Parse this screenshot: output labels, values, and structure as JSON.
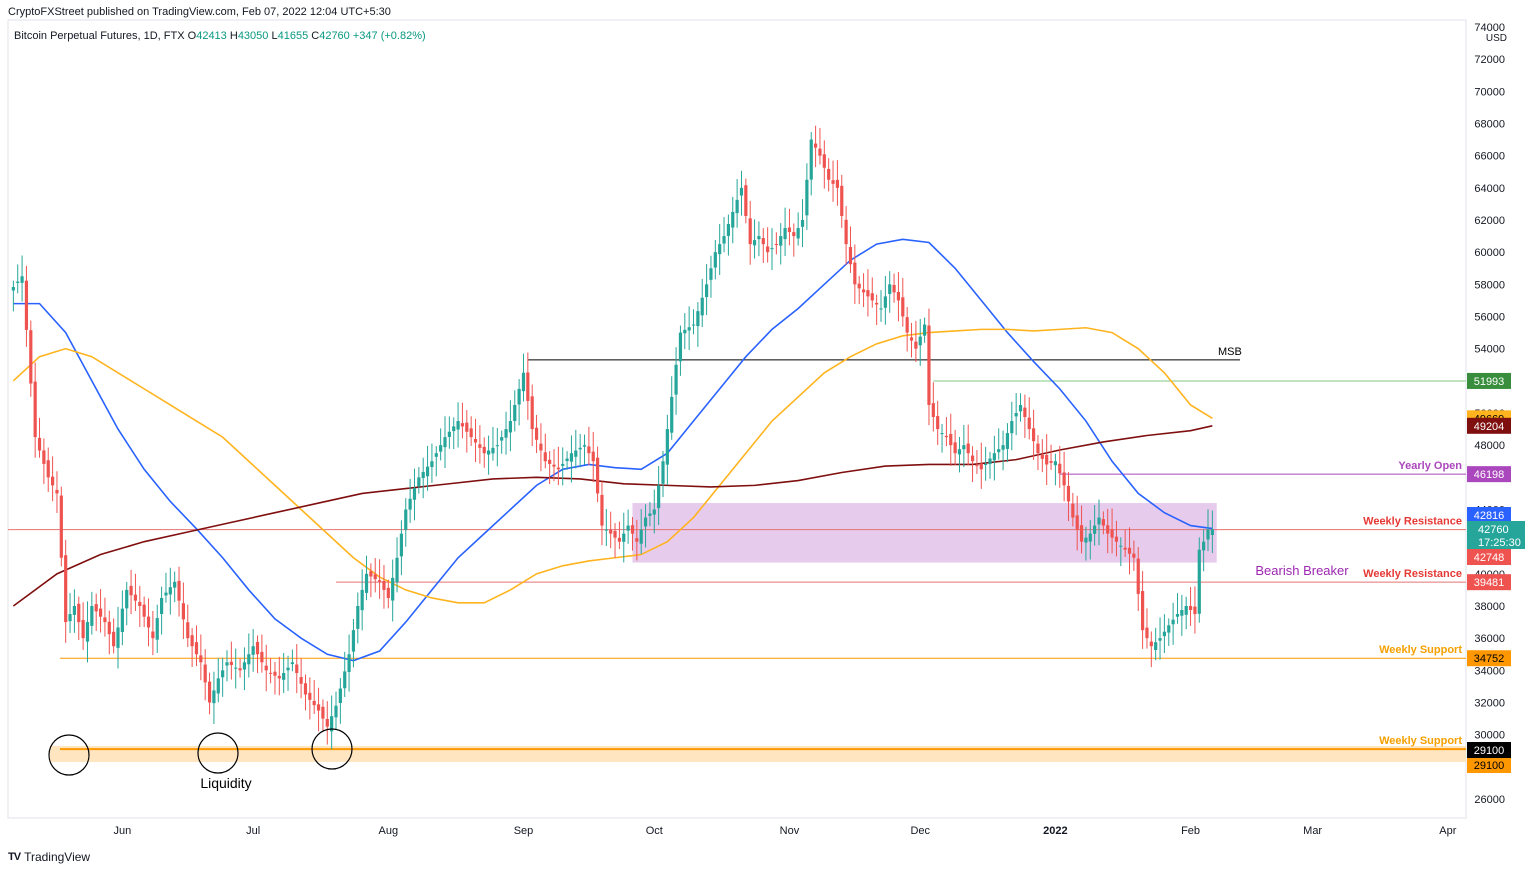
{
  "header": {
    "publisher": "CryptoFXStreet published on TradingView.com, Feb 07, 2022 12:04 UTC+5:30"
  },
  "legend": {
    "symbol": "Bitcoin Perpetual Futures, 1D, FTX",
    "o_key": "O",
    "o": "42413",
    "h_key": "H",
    "h": "43050",
    "l_key": "L",
    "l": "41655",
    "c_key": "C",
    "c": "42760",
    "change": "+347 (+0.82%)"
  },
  "footer": {
    "logo": "TV",
    "brand": "TradingView"
  },
  "colors": {
    "up": "#26a69a",
    "down": "#ef5350",
    "ema_blue": "#2962ff",
    "ema_orange": "#ffb41f",
    "ema_maroon": "#7f0f0f",
    "breaker": "#e1bee7",
    "support": "#ff9800",
    "resistance": "#e57373",
    "yearly": "#ab47bc",
    "msb_high": "#81c784"
  },
  "chart_data": {
    "type": "candlestick",
    "currency": "USD",
    "y_ticks": [
      26000,
      28000,
      30000,
      32000,
      34000,
      36000,
      38000,
      40000,
      42000,
      44000,
      46000,
      48000,
      50000,
      52000,
      54000,
      56000,
      58000,
      60000,
      62000,
      64000,
      66000,
      68000,
      70000,
      72000,
      74000
    ],
    "ylim": [
      25000,
      74000
    ],
    "x_labels": [
      {
        "label": "Jun",
        "t": 25
      },
      {
        "label": "Jul",
        "t": 55
      },
      {
        "label": "Aug",
        "t": 86
      },
      {
        "label": "Sep",
        "t": 117
      },
      {
        "label": "Oct",
        "t": 147
      },
      {
        "label": "Nov",
        "t": 178
      },
      {
        "label": "Dec",
        "t": 208
      },
      {
        "label": "2022",
        "t": 239
      },
      {
        "label": "Feb",
        "t": 270
      },
      {
        "label": "Mar",
        "t": 298
      },
      {
        "label": "Apr",
        "t": 329
      }
    ],
    "x_start_offset": -1,
    "price_path": [
      [
        0,
        57500
      ],
      [
        3,
        58500
      ],
      [
        6,
        48500
      ],
      [
        9,
        46000
      ],
      [
        11,
        45000
      ],
      [
        13,
        37000
      ],
      [
        15,
        38000
      ],
      [
        17,
        36000
      ],
      [
        19,
        38000
      ],
      [
        22,
        37000
      ],
      [
        24,
        35500
      ],
      [
        27,
        39000
      ],
      [
        30,
        38000
      ],
      [
        33,
        36000
      ],
      [
        35,
        38500
      ],
      [
        38,
        39500
      ],
      [
        41,
        36000
      ],
      [
        44,
        34500
      ],
      [
        46,
        32000
      ],
      [
        48,
        33500
      ],
      [
        50,
        34500
      ],
      [
        53,
        34000
      ],
      [
        56,
        35500
      ],
      [
        59,
        34000
      ],
      [
        62,
        33500
      ],
      [
        65,
        34500
      ],
      [
        68,
        32500
      ],
      [
        71,
        31500
      ],
      [
        73,
        30500
      ],
      [
        75,
        31800
      ],
      [
        78,
        35000
      ],
      [
        80,
        38000
      ],
      [
        82,
        40000
      ],
      [
        85,
        39500
      ],
      [
        87,
        38500
      ],
      [
        89,
        41000
      ],
      [
        91,
        44000
      ],
      [
        94,
        46000
      ],
      [
        97,
        47000
      ],
      [
        100,
        48500
      ],
      [
        103,
        49500
      ],
      [
        106,
        48500
      ],
      [
        109,
        47500
      ],
      [
        112,
        48000
      ],
      [
        115,
        49500
      ],
      [
        118,
        52500
      ],
      [
        120,
        49000
      ],
      [
        123,
        47000
      ],
      [
        126,
        46500
      ],
      [
        129,
        47500
      ],
      [
        132,
        48000
      ],
      [
        134,
        47000
      ],
      [
        136,
        43000
      ],
      [
        138,
        42500
      ],
      [
        140,
        42000
      ],
      [
        142,
        43000
      ],
      [
        144,
        42000
      ],
      [
        146,
        43500
      ],
      [
        148,
        44000
      ],
      [
        150,
        47000
      ],
      [
        152,
        51000
      ],
      [
        154,
        55000
      ],
      [
        157,
        55500
      ],
      [
        160,
        58000
      ],
      [
        162,
        60000
      ],
      [
        164,
        61000
      ],
      [
        166,
        62500
      ],
      [
        168,
        64000
      ],
      [
        170,
        60500
      ],
      [
        172,
        61000
      ],
      [
        174,
        60000
      ],
      [
        176,
        60500
      ],
      [
        178,
        61500
      ],
      [
        180,
        61000
      ],
      [
        182,
        62000
      ],
      [
        184,
        67000
      ],
      [
        186,
        66000
      ],
      [
        188,
        64500
      ],
      [
        190,
        64000
      ],
      [
        192,
        60500
      ],
      [
        194,
        58000
      ],
      [
        196,
        57500
      ],
      [
        198,
        57000
      ],
      [
        200,
        56500
      ],
      [
        202,
        58000
      ],
      [
        204,
        57000
      ],
      [
        206,
        55000
      ],
      [
        208,
        54000
      ],
      [
        210,
        55500
      ],
      [
        211,
        50500
      ],
      [
        213,
        49000
      ],
      [
        215,
        48500
      ],
      [
        217,
        47500
      ],
      [
        219,
        48000
      ],
      [
        221,
        47000
      ],
      [
        223,
        46500
      ],
      [
        226,
        47500
      ],
      [
        228,
        48000
      ],
      [
        230,
        49500
      ],
      [
        232,
        50500
      ],
      [
        234,
        49000
      ],
      [
        236,
        47500
      ],
      [
        238,
        46800
      ],
      [
        240,
        47000
      ],
      [
        242,
        45500
      ],
      [
        244,
        43500
      ],
      [
        246,
        42000
      ],
      [
        248,
        42500
      ],
      [
        250,
        43500
      ],
      [
        252,
        42500
      ],
      [
        254,
        42000
      ],
      [
        256,
        41500
      ],
      [
        258,
        41000
      ],
      [
        260,
        36500
      ],
      [
        262,
        35500
      ],
      [
        264,
        36000
      ],
      [
        266,
        36800
      ],
      [
        268,
        37500
      ],
      [
        270,
        38000
      ],
      [
        272,
        37500
      ],
      [
        273,
        41500
      ],
      [
        274,
        42000
      ],
      [
        275,
        42760
      ]
    ],
    "series": [
      {
        "name": "",
        "role": "ema_blue",
        "x": [
          0,
          6,
          12,
          18,
          24,
          30,
          36,
          42,
          48,
          54,
          60,
          66,
          72,
          78,
          84,
          90,
          96,
          102,
          108,
          114,
          120,
          126,
          132,
          138,
          144,
          150,
          156,
          162,
          168,
          174,
          180,
          186,
          192,
          198,
          204,
          210,
          216,
          222,
          228,
          234,
          240,
          246,
          252,
          258,
          264,
          270,
          275
        ],
        "y": [
          56800,
          56800,
          55000,
          52000,
          49000,
          46500,
          44500,
          42800,
          41000,
          39000,
          37200,
          36000,
          35000,
          34600,
          35200,
          37000,
          39000,
          41000,
          42500,
          44000,
          45500,
          46500,
          46800,
          46600,
          46500,
          47500,
          49500,
          51500,
          53500,
          55200,
          56500,
          58000,
          59500,
          60500,
          60800,
          60600,
          59000,
          57000,
          55000,
          53200,
          51500,
          49500,
          47000,
          45000,
          43800,
          43000,
          42816
        ]
      },
      {
        "name": "",
        "role": "ema_orange",
        "x": [
          0,
          6,
          12,
          18,
          24,
          30,
          36,
          42,
          48,
          54,
          60,
          66,
          72,
          78,
          84,
          90,
          96,
          102,
          108,
          114,
          120,
          126,
          132,
          138,
          144,
          150,
          156,
          162,
          168,
          174,
          180,
          186,
          192,
          198,
          204,
          210,
          216,
          222,
          228,
          234,
          240,
          246,
          252,
          258,
          264,
          270,
          275
        ],
        "y": [
          52000,
          53500,
          54000,
          53500,
          52500,
          51500,
          50500,
          49500,
          48500,
          47000,
          45500,
          44000,
          42500,
          41000,
          39800,
          39000,
          38500,
          38200,
          38200,
          39000,
          40000,
          40500,
          40800,
          41000,
          41200,
          42000,
          43500,
          45500,
          47500,
          49500,
          51000,
          52500,
          53500,
          54300,
          54800,
          55000,
          55100,
          55200,
          55200,
          55100,
          55200,
          55300,
          55000,
          54000,
          52500,
          50500,
          49669
        ]
      },
      {
        "name": "",
        "role": "ema_maroon",
        "x": [
          0,
          10,
          20,
          30,
          40,
          50,
          60,
          70,
          80,
          90,
          100,
          110,
          120,
          130,
          140,
          150,
          160,
          170,
          180,
          190,
          200,
          210,
          220,
          230,
          240,
          250,
          260,
          270,
          275
        ],
        "y": [
          38000,
          40000,
          41200,
          42000,
          42600,
          43200,
          43800,
          44400,
          45000,
          45300,
          45600,
          45900,
          46000,
          45900,
          45600,
          45500,
          45400,
          45500,
          45800,
          46300,
          46700,
          46800,
          46800,
          47100,
          47700,
          48200,
          48600,
          48900,
          49204
        ]
      }
    ],
    "levels": [
      {
        "label": "MSB",
        "price": 53300,
        "role": "msb"
      },
      {
        "label": "",
        "price": 51993,
        "role": "msb_high",
        "tag": "51993"
      },
      {
        "label": "",
        "price": 49669,
        "role": "tag_orange",
        "tag": "49669"
      },
      {
        "label": "",
        "price": 49204,
        "role": "tag_maroon",
        "tag": "49204"
      },
      {
        "label": "Yearly Open",
        "price": 46198,
        "role": "yearly",
        "tag": "46198"
      },
      {
        "label": "Weekly Resistance",
        "price": 42748,
        "role": "resistance",
        "tag": "42748"
      },
      {
        "label": "Weekly Resistance",
        "price": 39481,
        "role": "resistance",
        "tag": "39481"
      },
      {
        "label": "Weekly Support",
        "price": 34752,
        "role": "support",
        "tag": "34752"
      },
      {
        "label": "Weekly Support",
        "price": 29100,
        "role": "support",
        "tag": "29100"
      }
    ],
    "price_tags": [
      {
        "text": "42816",
        "role": "blue"
      },
      {
        "text": "42760",
        "role": "last"
      },
      {
        "text": "17:25:30",
        "role": "last"
      },
      {
        "text": "29100",
        "role": "black"
      }
    ],
    "zones": [
      {
        "label": "Bearish Breaker",
        "from": 40700,
        "to": 44400
      },
      {
        "label": "",
        "from": 28300,
        "to": 29300
      }
    ],
    "annotations": [
      {
        "text": "Liquidity"
      }
    ],
    "grid": false
  }
}
